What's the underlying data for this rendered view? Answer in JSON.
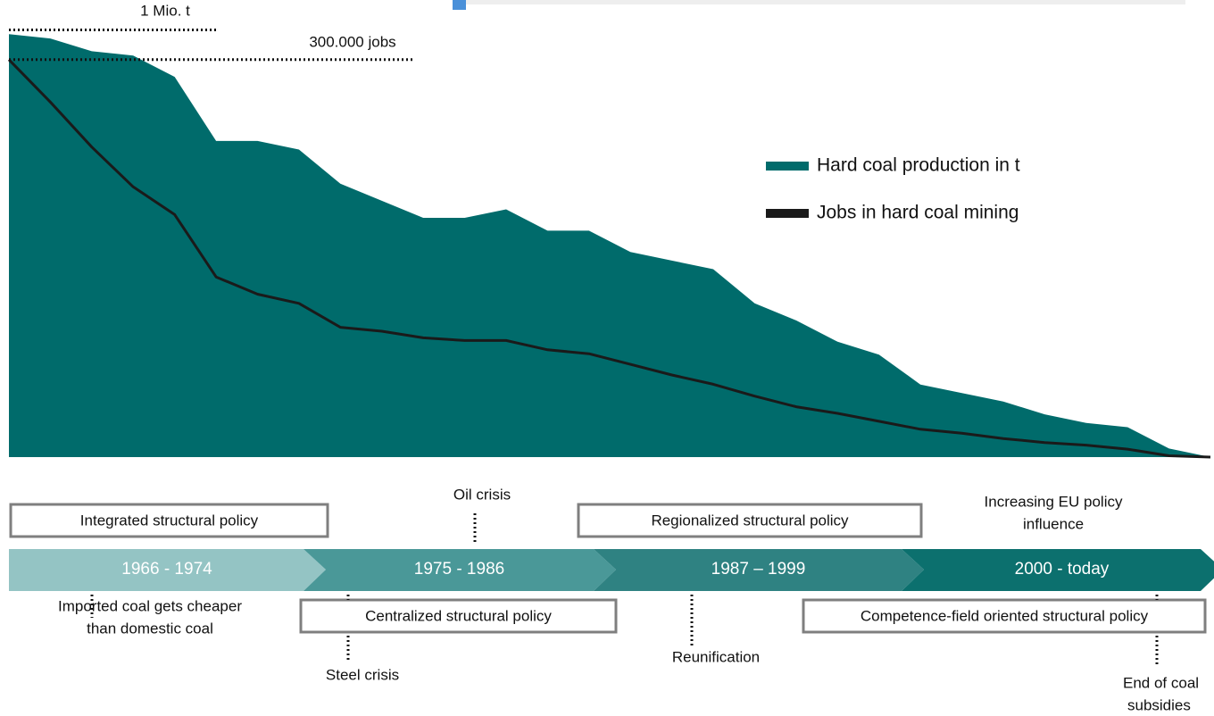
{
  "chart_data": {
    "type": "area-line",
    "series": [
      {
        "name": "Hard coal production in t",
        "color": "#006b6b",
        "values": [
          0.99,
          0.98,
          0.95,
          0.94,
          0.89,
          0.74,
          0.74,
          0.72,
          0.64,
          0.6,
          0.56,
          0.56,
          0.58,
          0.53,
          0.53,
          0.48,
          0.46,
          0.44,
          0.36,
          0.32,
          0.27,
          0.24,
          0.17,
          0.15,
          0.13,
          0.1,
          0.08,
          0.07,
          0.02,
          0
        ]
      },
      {
        "name": "Jobs in hard coal mining",
        "color": "#1a1a1a",
        "axis": "y2",
        "values": [
          300000,
          268000,
          234000,
          204000,
          183000,
          136000,
          123000,
          116000,
          98000,
          95000,
          90000,
          88000,
          88000,
          81000,
          78000,
          70000,
          62000,
          55000,
          46000,
          38000,
          33000,
          27000,
          21000,
          18000,
          14000,
          11000,
          9000,
          6000,
          1000,
          0
        ]
      }
    ],
    "ylim": [
      0,
      1.07
    ],
    "y2lim": [
      0,
      345000
    ],
    "reference_lines": [
      {
        "value": 1,
        "label": "1 Mio. t"
      },
      {
        "value": 300000,
        "label": "300.000 jobs",
        "axis": "y2"
      }
    ],
    "legend": "right"
  },
  "timeline": {
    "periods": [
      "1966 - 1974",
      "1975 - 1986",
      "1987 – 1999",
      "2000 - today"
    ],
    "policies": [
      "Integrated structural policy",
      "Centralized structural policy",
      "Regionalized structural policy",
      "Competence-field oriented structural policy"
    ],
    "events": [
      {
        "lines": [
          "Oil crisis"
        ]
      },
      {
        "lines": [
          "Increasing EU policy",
          "influence"
        ]
      },
      {
        "lines": [
          "Imported coal gets cheaper",
          "than domestic coal"
        ]
      },
      {
        "lines": [
          "Steel crisis"
        ]
      },
      {
        "lines": [
          "Reunification"
        ]
      },
      {
        "lines": [
          "End of coal",
          "subsidies"
        ]
      }
    ]
  }
}
